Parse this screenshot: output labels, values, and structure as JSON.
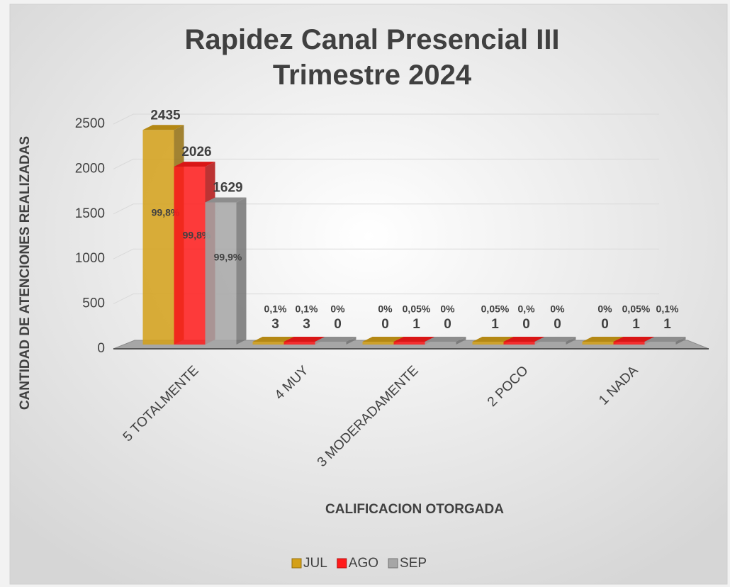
{
  "chart_data": {
    "type": "bar3d",
    "title": "Rapidez Canal Presencial III Trimestre 2024",
    "x_label": "CALIFICACION OTORGADA",
    "y_label": "CANTIDAD DE ATENCIONES REALIZADAS",
    "categories": [
      "5 TOTALMENTE",
      "4 MUY",
      "3 MODERADAMENTE",
      "2 POCO",
      "1 NADA"
    ],
    "series": [
      {
        "name": "JUL",
        "color": "#d4a017",
        "values": [
          2435,
          3,
          0,
          1,
          0
        ],
        "share_labels": [
          "99,8%",
          "0,1%",
          "0%",
          "0,05%",
          "0%"
        ]
      },
      {
        "name": "AGO",
        "color": "#ff1a1a",
        "values": [
          2026,
          3,
          1,
          0,
          1
        ],
        "share_labels": [
          "99,8%",
          "0,1%",
          "0,05%",
          "0,%",
          "0,05%"
        ]
      },
      {
        "name": "SEP",
        "color": "#a6a6a6",
        "values": [
          1629,
          0,
          0,
          0,
          1
        ],
        "share_labels": [
          "99,9%",
          "0%",
          "0%",
          "0%",
          "0,1%"
        ]
      }
    ],
    "ylim": [
      0,
      2500
    ],
    "yticks": [
      0,
      500,
      1000,
      1500,
      2000,
      2500
    ],
    "grid": true,
    "legend": "bottom"
  }
}
